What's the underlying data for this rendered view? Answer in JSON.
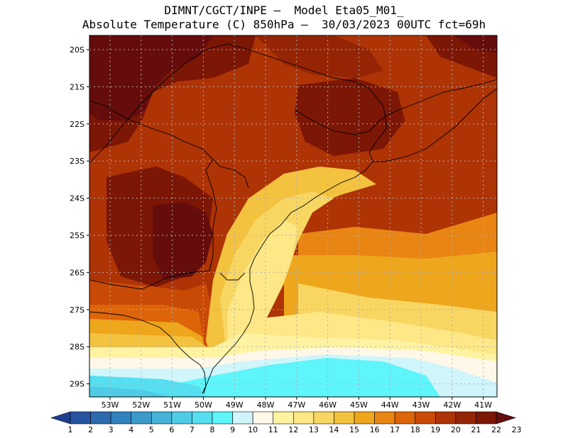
{
  "header": {
    "line1": "DIMNT/CGCT/INPE –  Model Eta05_M01_",
    "line2": "Absolute Temperature (C) 850hPa –  30/03/2023 00UTC fct=69h"
  },
  "map": {
    "lat_labels": [
      "20S",
      "21S",
      "22S",
      "23S",
      "24S",
      "25S",
      "26S",
      "27S",
      "28S",
      "29S"
    ],
    "lon_labels": [
      "53W",
      "52W",
      "51W",
      "50W",
      "49W",
      "48W",
      "47W",
      "46W",
      "45W",
      "44W",
      "43W",
      "42W",
      "41W"
    ]
  },
  "colorbar": {
    "labels": [
      "1",
      "2",
      "3",
      "4",
      "5",
      "6",
      "7",
      "8",
      "9",
      "10",
      "11",
      "12",
      "13",
      "14",
      "15",
      "16",
      "17",
      "18",
      "19",
      "20",
      "21",
      "22",
      "23"
    ],
    "colors": [
      "#1f3f8f",
      "#27529f",
      "#2c6aae",
      "#3282bd",
      "#3c9acb",
      "#46b3d9",
      "#4fcbe6",
      "#55dff0",
      "#5ef5fb",
      "#d0f5fb",
      "#fff8e8",
      "#fff3a2",
      "#fde786",
      "#f8d662",
      "#f3c23f",
      "#eea61d",
      "#e88513",
      "#dd6409",
      "#c94a06",
      "#ae3305",
      "#942404",
      "#7c1605",
      "#650c0c"
    ]
  }
}
